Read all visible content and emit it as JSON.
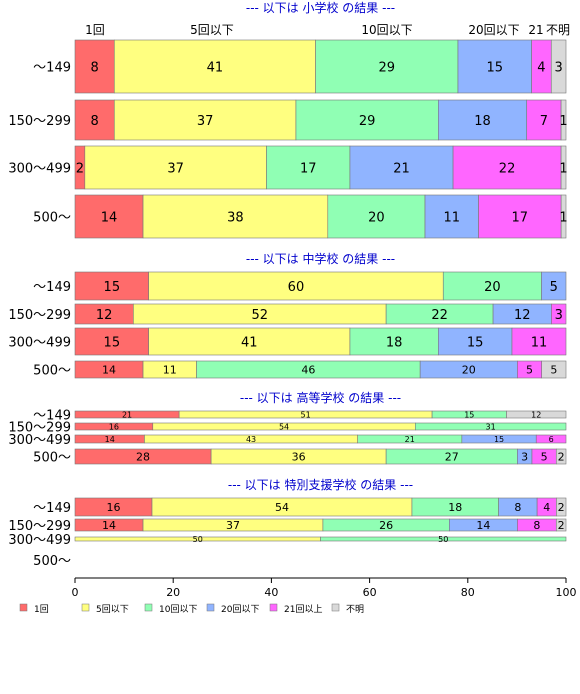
{
  "chart_data": {
    "type": "bar",
    "orientation": "horizontal",
    "stacked": "percent",
    "xlim": [
      0,
      100
    ],
    "xticks": [
      0,
      20,
      40,
      60,
      80,
      100
    ],
    "category_header_labels": [
      "1回",
      "5回以下",
      "10回以下",
      "20回以下",
      "21",
      "不明"
    ],
    "legend": [
      {
        "key": "c1",
        "label": "1回",
        "color": "#ff6b6b"
      },
      {
        "key": "c5",
        "label": "5回以下",
        "color": "#ffff80"
      },
      {
        "key": "c10",
        "label": "10回以下",
        "color": "#90ffb4"
      },
      {
        "key": "c20",
        "label": "20回以下",
        "color": "#90b4ff"
      },
      {
        "key": "c21",
        "label": "21回以上",
        "color": "#ff66ff"
      },
      {
        "key": "cu",
        "label": "不明",
        "color": "#d9d9d9"
      }
    ],
    "legend_position": "bottom",
    "panels": [
      {
        "title": "--- 以下は 小学校 の結果 ---",
        "rows": [
          {
            "label": "～149",
            "values": [
              8,
              41,
              29,
              15,
              4,
              3
            ]
          },
          {
            "label": "150～299",
            "values": [
              8,
              37,
              29,
              18,
              7,
              1
            ]
          },
          {
            "label": "300～499",
            "values": [
              2,
              37,
              17,
              21,
              22,
              1
            ]
          },
          {
            "label": "500～",
            "values": [
              14,
              38,
              20,
              11,
              17,
              1
            ]
          }
        ]
      },
      {
        "title": "--- 以下は 中学校 の結果 ---",
        "rows": [
          {
            "label": "～149",
            "values": [
              15,
              60,
              20,
              5,
              0,
              0
            ]
          },
          {
            "label": "150～299",
            "values": [
              12,
              52,
              22,
              12,
              3,
              0
            ]
          },
          {
            "label": "300～499",
            "values": [
              15,
              41,
              18,
              15,
              11,
              0
            ]
          },
          {
            "label": "500～",
            "values": [
              14,
              11,
              46,
              20,
              5,
              5
            ]
          }
        ]
      },
      {
        "title": "--- 以下は 高等学校 の結果 ---",
        "rows": [
          {
            "label": "～149",
            "values": [
              21,
              51,
              15,
              0,
              0,
              12
            ]
          },
          {
            "label": "150～299",
            "values": [
              16,
              54,
              31,
              0,
              0,
              0
            ]
          },
          {
            "label": "300～499",
            "values": [
              14,
              43,
              21,
              15,
              6,
              0
            ]
          },
          {
            "label": "500～",
            "values": [
              28,
              36,
              27,
              3,
              5,
              2
            ]
          }
        ]
      },
      {
        "title": "--- 以下は 特別支援学校 の結果 ---",
        "rows": [
          {
            "label": "～149",
            "values": [
              16,
              54,
              18,
              8,
              4,
              2
            ]
          },
          {
            "label": "150～299",
            "values": [
              14,
              37,
              26,
              14,
              8,
              2
            ]
          },
          {
            "label": "300～499",
            "values": [
              0,
              50,
              50,
              0,
              0,
              0
            ]
          },
          {
            "label": "500～",
            "values": [
              0,
              0,
              0,
              0,
              0,
              0
            ]
          }
        ]
      }
    ]
  }
}
